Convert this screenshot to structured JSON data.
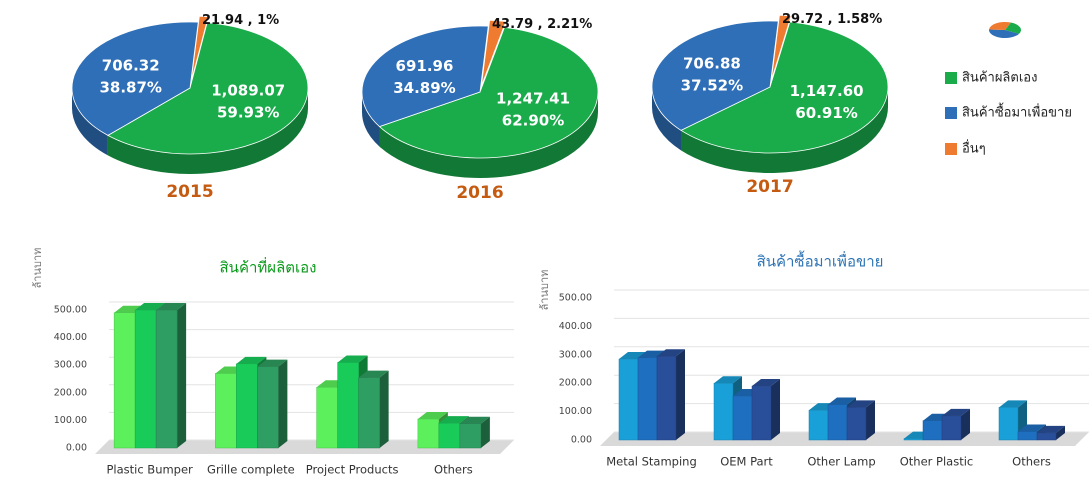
{
  "legend": {
    "labels": [
      "สินค้าผลิตเอง",
      "สินค้าซื้อมาเพื่อขาย",
      "อื่นๆ"
    ],
    "colors": [
      "#1aab4b",
      "#2e6fb7",
      "#ee7b30"
    ]
  },
  "chart_data": [
    {
      "type": "pie",
      "title": "2015",
      "values": [
        1089.07,
        706.32,
        21.94
      ],
      "value_labels": [
        "1,089.07",
        "706.32",
        "21.94 ,"
      ],
      "percentages": [
        59.93,
        38.87,
        1
      ],
      "percent_labels": [
        "59.93%",
        "38.87%",
        "1%"
      ]
    },
    {
      "type": "pie",
      "title": "2016",
      "values": [
        1247.41,
        691.96,
        43.79
      ],
      "value_labels": [
        "1,247.41",
        "691.96",
        "43.79 ,"
      ],
      "percentages": [
        62.9,
        34.89,
        2.21
      ],
      "percent_labels": [
        "62.90%",
        "34.89%",
        "2.21%"
      ]
    },
    {
      "type": "pie",
      "title": "2017",
      "values": [
        1147.6,
        706.88,
        29.72
      ],
      "value_labels": [
        "1,147.60",
        "706.88",
        "29.72 ,"
      ],
      "percentages": [
        60.91,
        37.52,
        1.58
      ],
      "percent_labels": [
        "60.91%",
        "37.52%",
        "1.58%"
      ]
    },
    {
      "type": "bar3d",
      "title": "สินค้าที่ผลิตเอง",
      "title_color": "#0a9a1a",
      "ylabel": "ล้านบาท",
      "categories": [
        "Plastic Bumper",
        "Grille complete",
        "Project Products",
        "Others"
      ],
      "series": [
        {
          "color": "#5cf05c",
          "values": [
            490,
            270,
            220,
            105
          ]
        },
        {
          "color": "#19cc5a",
          "values": [
            500,
            305,
            310,
            90
          ]
        },
        {
          "color": "#2f9e62",
          "values": [
            500,
            295,
            255,
            88
          ]
        }
      ],
      "ylim": [
        0,
        500
      ],
      "yticks": [
        {
          "value": 0,
          "label": "0.00"
        },
        {
          "value": 100,
          "label": "100.00"
        },
        {
          "value": 200,
          "label": "200.00"
        },
        {
          "value": 300,
          "label": "300.00"
        },
        {
          "value": 400,
          "label": "400.00"
        },
        {
          "value": 500,
          "label": "500.00"
        }
      ],
      "grid": true
    },
    {
      "type": "bar3d",
      "title": "สินค้าซื้อมาเพื่อขาย",
      "title_color": "#2e74b5",
      "ylabel": "ล้านบาท",
      "categories": [
        "Metal Stamping",
        "OEM Part",
        "Other Lamp",
        "Other Plastic",
        "Others"
      ],
      "series": [
        {
          "color": "#1aa0d8",
          "values": [
            285,
            200,
            105,
            5,
            115
          ]
        },
        {
          "color": "#1f6fc0",
          "values": [
            290,
            155,
            125,
            68,
            30
          ]
        },
        {
          "color": "#2a4f9a",
          "values": [
            295,
            190,
            115,
            85,
            25
          ]
        }
      ],
      "ylim": [
        0,
        500
      ],
      "yticks": [
        {
          "value": 0,
          "label": "0.00"
        },
        {
          "value": 100,
          "label": "100.00"
        },
        {
          "value": 200,
          "label": "200.00"
        },
        {
          "value": 300,
          "label": "300.00"
        },
        {
          "value": 400,
          "label": "400.00"
        },
        {
          "value": 500,
          "label": "500.00"
        }
      ],
      "grid": true
    }
  ]
}
